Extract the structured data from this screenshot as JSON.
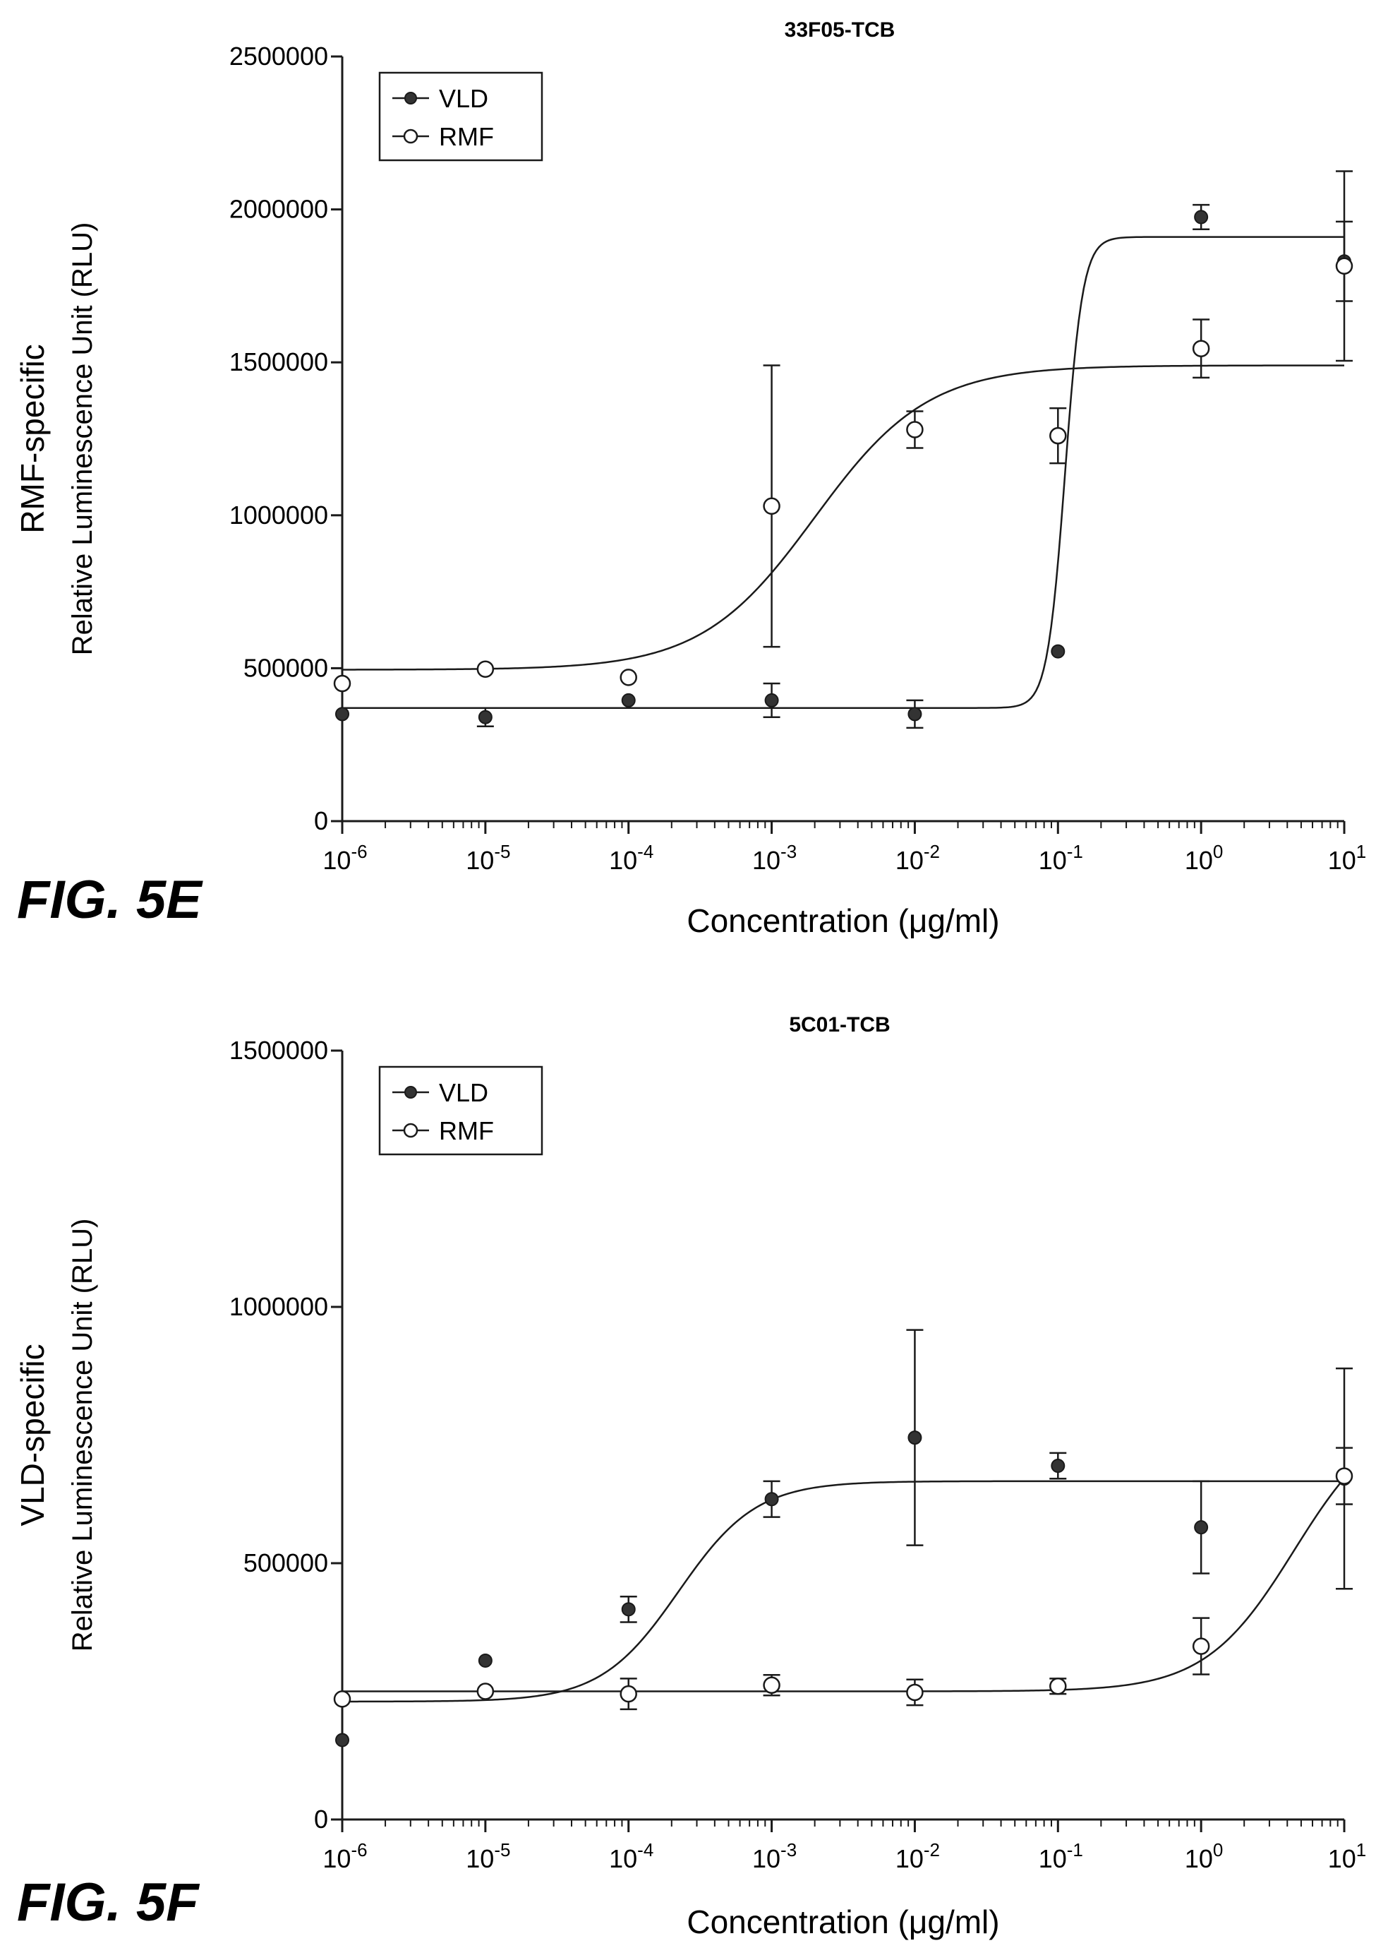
{
  "chart_data": [
    {
      "type": "scatter",
      "figure_label": "FIG. 5E",
      "title": "33F05-TCB",
      "ylabel": "RMF-specific",
      "ylabel2": "Relative Luminescence Unit (RLU)",
      "xlabel": "Concentration (μg/ml)",
      "xscale": "log",
      "xlim": [
        1e-06,
        10
      ],
      "ylim": [
        0,
        2500000
      ],
      "yticks": [
        "0",
        "500000",
        "1000000",
        "1500000",
        "2000000",
        "2500000"
      ],
      "xticks": [
        {
          "base": "10",
          "exp": "-6"
        },
        {
          "base": "10",
          "exp": "-5"
        },
        {
          "base": "10",
          "exp": "-4"
        },
        {
          "base": "10",
          "exp": "-3"
        },
        {
          "base": "10",
          "exp": "-2"
        },
        {
          "base": "10",
          "exp": "-1"
        },
        {
          "base": "10",
          "exp": "0"
        },
        {
          "base": "10",
          "exp": "1"
        }
      ],
      "legend": "top-left",
      "series": [
        {
          "name": "VLD",
          "marker": "filled",
          "x": [
            1e-06,
            1e-05,
            0.0001,
            0.001,
            0.01,
            0.1,
            1,
            10
          ],
          "y": [
            350000,
            340000,
            395000,
            395000,
            350000,
            555000,
            1975000,
            1830000
          ],
          "error": [
            0,
            30000,
            0,
            55000,
            45000,
            0,
            40000,
            130000
          ],
          "fit": {
            "bottom": 370000,
            "top": 1910000,
            "logEC50": -0.95,
            "hill": 7
          }
        },
        {
          "name": "RMF",
          "marker": "open",
          "x": [
            1e-06,
            1e-05,
            0.0001,
            0.001,
            0.01,
            0.1,
            1,
            10
          ],
          "y": [
            450000,
            497000,
            470000,
            1030000,
            1280000,
            1260000,
            1545000,
            1815000
          ],
          "error": [
            0,
            0,
            0,
            460000,
            60000,
            90000,
            95000,
            310000
          ],
          "fit": {
            "bottom": 495000,
            "top": 1490000,
            "logEC50": -2.7,
            "hill": 1.1
          }
        }
      ]
    },
    {
      "type": "scatter",
      "figure_label": "FIG. 5F",
      "title": "5C01-TCB",
      "ylabel": "VLD-specific",
      "ylabel2": "Relative Luminescence Unit (RLU)",
      "xlabel": "Concentration (μg/ml)",
      "xscale": "log",
      "xlim": [
        1e-06,
        10
      ],
      "ylim": [
        0,
        1500000
      ],
      "yticks": [
        "0",
        "500000",
        "1000000",
        "1500000"
      ],
      "xticks": [
        {
          "base": "10",
          "exp": "-6"
        },
        {
          "base": "10",
          "exp": "-5"
        },
        {
          "base": "10",
          "exp": "-4"
        },
        {
          "base": "10",
          "exp": "-3"
        },
        {
          "base": "10",
          "exp": "-2"
        },
        {
          "base": "10",
          "exp": "-1"
        },
        {
          "base": "10",
          "exp": "0"
        },
        {
          "base": "10",
          "exp": "1"
        }
      ],
      "legend": "top-left",
      "series": [
        {
          "name": "VLD",
          "marker": "filled",
          "x": [
            1e-06,
            1e-05,
            0.0001,
            0.001,
            0.01,
            0.1,
            1,
            10
          ],
          "y": [
            155000,
            310000,
            410000,
            625000,
            745000,
            690000,
            570000,
            665000
          ],
          "error": [
            0,
            0,
            25000,
            35000,
            210000,
            25000,
            90000,
            215000
          ],
          "fit": {
            "bottom": 230000,
            "top": 660000,
            "logEC50": -3.65,
            "hill": 1.6
          }
        },
        {
          "name": "RMF",
          "marker": "open",
          "x": [
            1e-06,
            1e-05,
            0.0001,
            0.001,
            0.01,
            0.1,
            1,
            10
          ],
          "y": [
            235000,
            250000,
            245000,
            262000,
            248000,
            260000,
            338000,
            670000
          ],
          "error": [
            0,
            0,
            30000,
            20000,
            25000,
            15000,
            55000,
            55000
          ],
          "fit": {
            "bottom": 250000,
            "top": 800000,
            "logEC50": 0.65,
            "hill": 1.4
          }
        }
      ]
    }
  ]
}
